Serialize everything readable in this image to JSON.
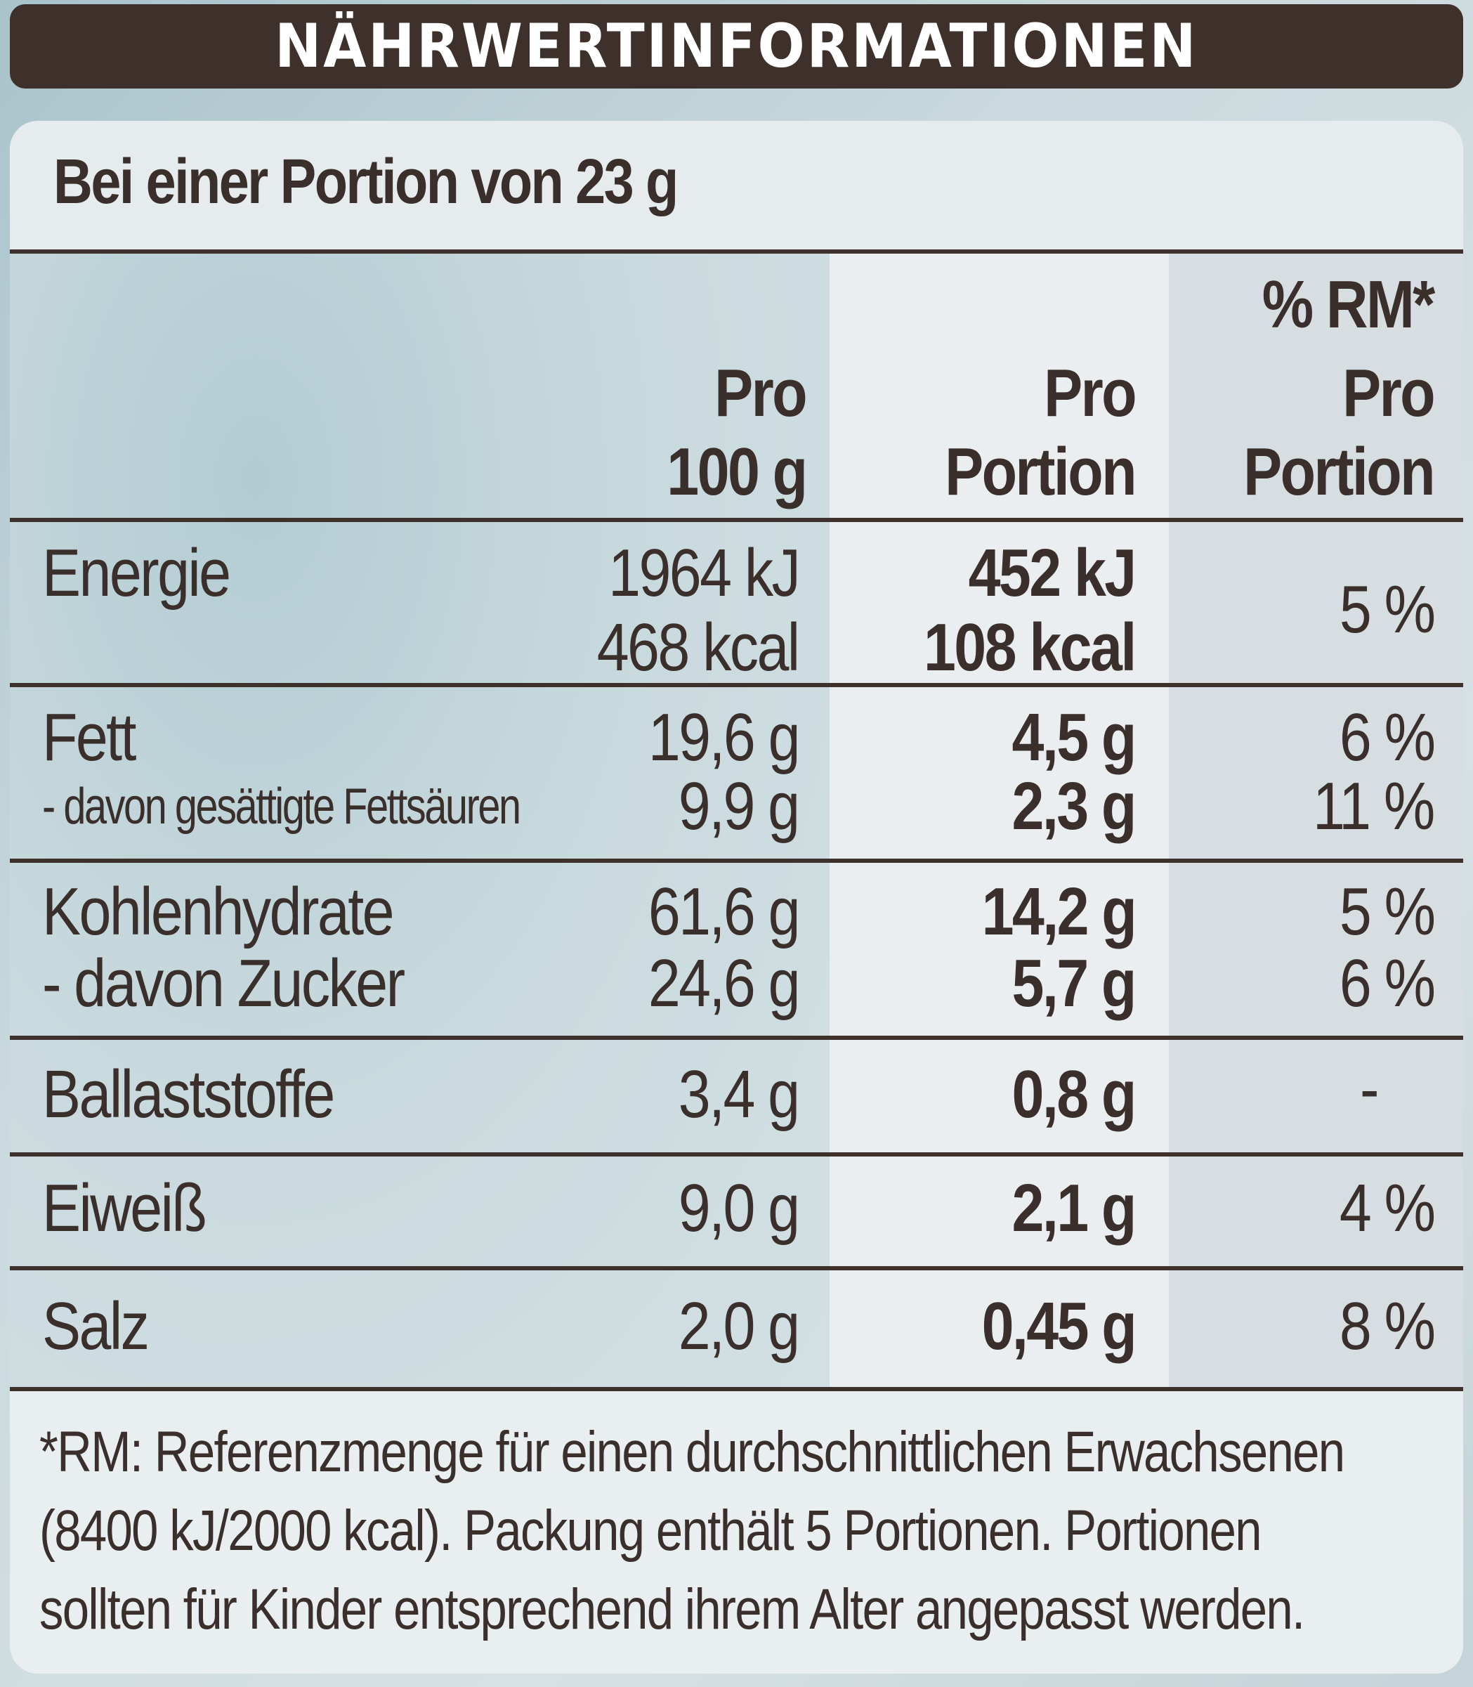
{
  "header": {
    "title": "NÄHRWERTINFORMATIONEN"
  },
  "portion_heading": "Bei einer Portion von 23 g",
  "columns": {
    "per100_line1": "Pro",
    "per100_line2": "100 g",
    "perportion_line1": "Pro",
    "perportion_line2": "Portion",
    "rm_line1": "% RM*",
    "rm_line2": "Pro",
    "rm_line3": "Portion"
  },
  "rows": [
    {
      "label": "Energie",
      "per100": "1964 kJ",
      "per100_2": "468 kcal",
      "portion": "452 kJ",
      "portion_2": "108 kcal",
      "rm": "5 %"
    },
    {
      "label": "Fett",
      "sublabel": "- davon gesättigte Fettsäuren",
      "per100": "19,6 g",
      "per100_2": "9,9 g",
      "portion": "4,5 g",
      "portion_2": "2,3 g",
      "rm": "6 %",
      "rm_2": "11 %"
    },
    {
      "label": "Kohlenhydrate",
      "sublabel": "- davon Zucker",
      "per100": "61,6 g",
      "per100_2": "24,6 g",
      "portion": "14,2 g",
      "portion_2": "5,7 g",
      "rm": "5 %",
      "rm_2": "6 %"
    },
    {
      "label": "Ballaststoffe",
      "per100": "3,4 g",
      "portion": "0,8 g",
      "rm": "-"
    },
    {
      "label": "Eiweiß",
      "per100": "9,0 g",
      "portion": "2,1 g",
      "rm": "4 %"
    },
    {
      "label": "Salz",
      "per100": "2,0 g",
      "portion": "0,45 g",
      "rm": "8 %"
    }
  ],
  "footnote": {
    "line1": "*RM: Referenzmenge für einen durchschnittlichen Erwachsenen",
    "line2": "(8400 kJ/2000 kcal). Packung enthält 5 Portionen. Portionen",
    "line3": "sollten für Kinder entsprechend ihrem Alter angepasst werden."
  }
}
